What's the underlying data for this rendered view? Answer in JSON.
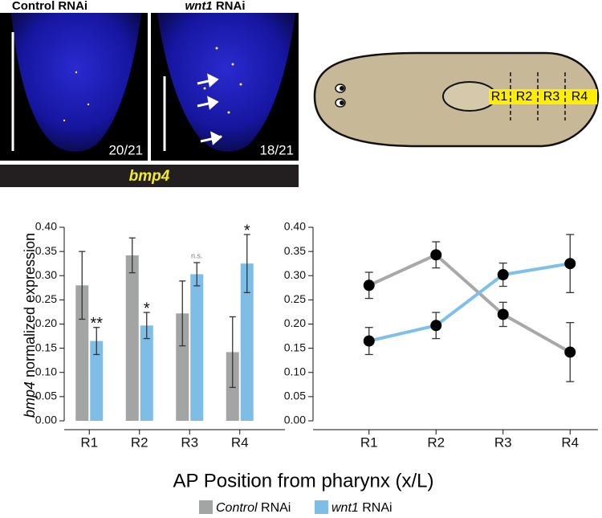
{
  "panels": [
    {
      "title": "Control RNAi",
      "count": "20/21"
    },
    {
      "title": "wnt1 RNAi",
      "count": "18/21"
    }
  ],
  "gene_label": "bmp4",
  "diagram": {
    "regions": [
      "R1",
      "R2",
      "R3",
      "R4"
    ]
  },
  "x_label": "AP Position from pharynx (x/L)",
  "chart_data": [
    {
      "type": "bar",
      "y_label": "bmp4 normalized expression",
      "categories": [
        "R1",
        "R2",
        "R3",
        "R4"
      ],
      "series": [
        {
          "name": "Control RNAi",
          "color": "#a3a5a4",
          "values": [
            0.28,
            0.342,
            0.222,
            0.142
          ],
          "errors": [
            0.07,
            0.036,
            0.067,
            0.073
          ]
        },
        {
          "name": "wnt1 RNAi",
          "color": "#7dbde6",
          "values": [
            0.165,
            0.197,
            0.303,
            0.325
          ],
          "errors": [
            0.028,
            0.027,
            0.024,
            0.06
          ]
        }
      ],
      "annotations": [
        "**",
        "*",
        "n.s.",
        "*"
      ],
      "ylim": [
        0,
        0.4
      ],
      "yticks": [
        {
          "value": 0,
          "label": "0.00"
        },
        {
          "value": 0.05,
          "label": "0.05"
        },
        {
          "value": 0.1,
          "label": "0.10"
        },
        {
          "value": 0.15,
          "label": "0.15"
        },
        {
          "value": 0.2,
          "label": "0.20"
        },
        {
          "value": 0.25,
          "label": "0.25"
        },
        {
          "value": 0.3,
          "label": "0.30"
        },
        {
          "value": 0.35,
          "label": "0.35"
        },
        {
          "value": 0.4,
          "label": "0.40"
        }
      ]
    },
    {
      "type": "line",
      "categories": [
        "R1",
        "R2",
        "R3",
        "R4"
      ],
      "series": [
        {
          "color": "#a8a8a8",
          "values": [
            0.28,
            0.343,
            0.22,
            0.142
          ],
          "errors": [
            0.027,
            0.027,
            0.025,
            0.061
          ]
        },
        {
          "color": "#7ec0ea",
          "values": [
            0.165,
            0.197,
            0.302,
            0.325
          ],
          "errors": [
            0.028,
            0.027,
            0.024,
            0.06
          ]
        }
      ],
      "ylim": [
        0,
        0.4
      ],
      "yticks": [
        {
          "value": 0,
          "label": "0.00"
        },
        {
          "value": 0.05,
          "label": "0.05"
        },
        {
          "value": 0.1,
          "label": "0.10"
        },
        {
          "value": 0.15,
          "label": "0.15"
        },
        {
          "value": 0.2,
          "label": "0.20"
        },
        {
          "value": 0.25,
          "label": "0.25"
        },
        {
          "value": 0.3,
          "label": "0.30"
        },
        {
          "value": 0.35,
          "label": "0.35"
        },
        {
          "value": 0.4,
          "label": "0.40"
        }
      ]
    }
  ]
}
